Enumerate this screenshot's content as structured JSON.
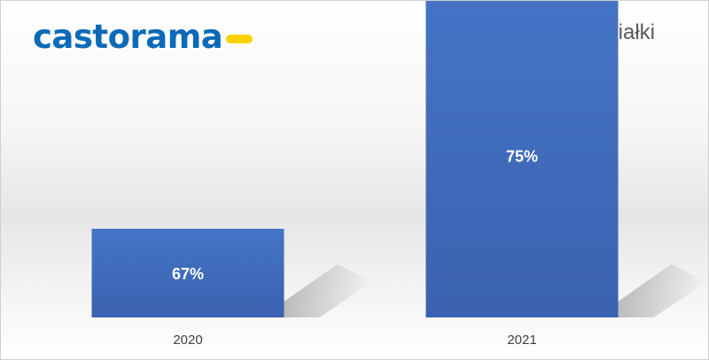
{
  "brand": {
    "logo_text": "castorama",
    "logo_color": "#0b6ab7",
    "dash_color": "#ffd200"
  },
  "chart_data": {
    "type": "bar",
    "title": "Chęć posiadania działki",
    "categories": [
      "2020",
      "2021"
    ],
    "values": [
      67,
      75
    ],
    "value_labels": [
      "67%",
      "75%"
    ],
    "unit": "%",
    "xlabel": "",
    "ylabel": "",
    "bar_color": "#4472c4",
    "grid": false,
    "legend": "none"
  }
}
